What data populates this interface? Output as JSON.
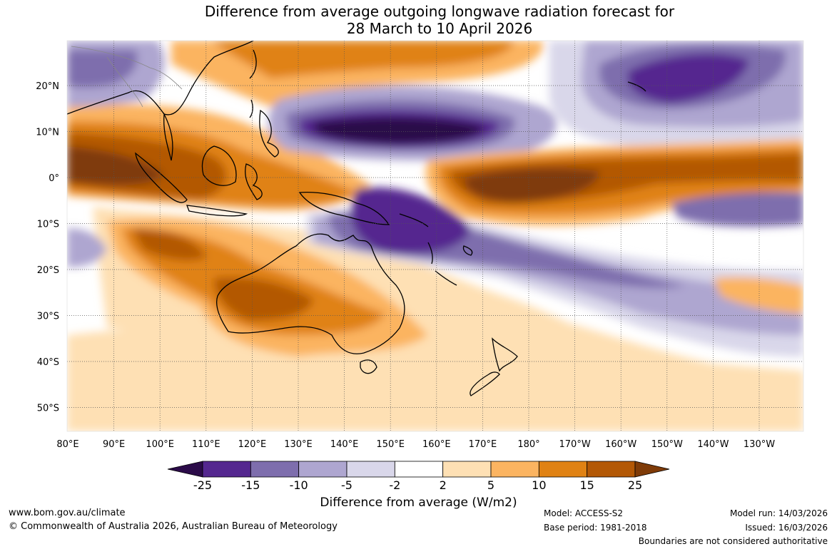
{
  "title": {
    "line1": "Difference from average outgoing longwave radiation forecast for",
    "line2": "28 March to 10 April 2026"
  },
  "map": {
    "longitude_labels": [
      "80°E",
      "90°E",
      "100°E",
      "110°E",
      "120°E",
      "130°E",
      "140°E",
      "150°E",
      "160°E",
      "170°E",
      "180°",
      "170°W",
      "160°W",
      "150°W",
      "140°W",
      "130°W"
    ],
    "latitude_labels": [
      "20°N",
      "10°N",
      "0°",
      "10°S",
      "20°S",
      "30°S",
      "40°S",
      "50°S"
    ]
  },
  "colorbar": {
    "bins": [
      {
        "color": "#2b0b49"
      },
      {
        "color": "#54278f"
      },
      {
        "color": "#7e6ead"
      },
      {
        "color": "#aea6d0"
      },
      {
        "color": "#d9d7ea"
      },
      {
        "color": "#ffffff"
      },
      {
        "color": "#fee0b4"
      },
      {
        "color": "#fbb461"
      },
      {
        "color": "#e08214"
      },
      {
        "color": "#b35806"
      },
      {
        "color": "#7f3b08"
      }
    ],
    "tick_labels": [
      "-25",
      "-15",
      "-10",
      "-5",
      "-2",
      "2",
      "5",
      "10",
      "15",
      "25"
    ],
    "title": "Difference from average (W/m2)"
  },
  "footer": {
    "website": "www.bom.gov.au/climate",
    "copyright": "© Commonwealth of Australia 2026, Australian Bureau of Meteorology",
    "model": "Model: ACCESS-S2",
    "base_period": "Base period: 1981-2018",
    "model_run": "Model run: 14/03/2026",
    "issued": "Issued: 16/03/2026",
    "disclaimer": "Boundaries are not considered authoritative"
  }
}
